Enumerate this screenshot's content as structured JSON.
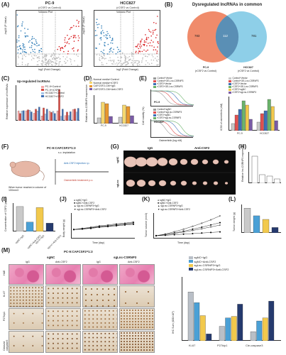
{
  "panels": {
    "A": "(A)",
    "B": "(B)",
    "C": "(C)",
    "D": "(D)",
    "E": "(E)",
    "F": "(F)",
    "G": "(G)",
    "H": "(H)",
    "I": "(I)",
    "J": "(J)",
    "K": "(K)",
    "L": "(L)",
    "M": "(M)"
  },
  "panelA": {
    "left_title": "PC-9",
    "left_sub": "(rCSF2  vs Control)",
    "right_title": "HCC827",
    "right_sub": "(rCSF2  vs Control)",
    "volcano_label": "Volcano Plot",
    "xlabel": "log2 (Fold Change)",
    "ylabel": "-log10 (P Value)",
    "legend": [
      "Down regulated",
      "Not significant",
      "Up regulated"
    ],
    "colors": {
      "up": "#d7191c",
      "down": "#2c7bb6",
      "ns": "#bdbdbd"
    }
  },
  "panelB": {
    "title": "Dysregulated lncRNAs in common",
    "left_value": "783",
    "center_value": "112",
    "right_value": "781",
    "left_label": "PC-9",
    "left_sub": "(rCSF2 vs Control)",
    "right_label": "HCC827",
    "right_sub": "(rCSF2 vs Control)",
    "colors": {
      "left": "#f08b6b",
      "right": "#8ecfe8",
      "overlap": "#5a8fb5"
    }
  },
  "panelC": {
    "title": "Up-regulated lncRNAs",
    "ylabel": "Relative expression of lncRNAs",
    "legend": [
      "PC-9+Control",
      "PC-9+rCSF2",
      "HCC827+Control",
      "HCC827+rCSF2"
    ],
    "colors": [
      "#f4a6a6",
      "#d9473e",
      "#a7c6ea",
      "#3d6fb5"
    ]
  },
  "panelD": {
    "ylabel": "Relative lnc-CSRNP3 expression",
    "categories": [
      "PC-9",
      "HCC827"
    ],
    "legend": [
      "Normal media+Control",
      "Normal media+rCSF2",
      "CAFCSF2-CM+IgG",
      "CAFCSF2-CM+Anti-CSF2"
    ],
    "colors": [
      "#c9c9c9",
      "#f5d76e",
      "#e8962e",
      "#7a5ba6"
    ]
  },
  "panelE": {
    "ylabel": "Cell viability (%)",
    "xlabel": "Osimertinib (log nM)",
    "ic50_label": "IC50 of osimertinib (nM)",
    "top_label": "PC-9",
    "bottom_label": "HCC827",
    "legend_top": [
      "Control+Vector",
      "Control+OE-Lnc-CSRNP3",
      "rCSF2+Vector",
      "rCSF2+OE-Lnc-CSRNP3"
    ],
    "legend_bottom": [
      "Control+sgNC",
      "Control+sgLnc-CSRNP3",
      "rCSF2+sgNC",
      "rCSF2+sgLnc-CSRNP3"
    ],
    "legend_ic": [
      "Control+Vector",
      "Control+OE-Lnc-CSRNP3",
      "rCSF2+Vector",
      "rCSF2+OE-Lnc-CSRNP3",
      "rCSF2+sgNC",
      "rCSF2+sgLnc-CSRNP3"
    ],
    "categories": [
      "PC-9",
      "HCC827"
    ]
  },
  "panelF": {
    "title": "PC-9:CAFCSF2=1:3",
    "step1": "s.c. implatation",
    "step2": "Anti-CSF2 injection i.p.",
    "step3": "Osimertinib treatment p.o.",
    "note": "When tumor reached a volume of 100mm3"
  },
  "panelG": {
    "col1": "IgG",
    "col2": "Anti-CSF2",
    "row1": "sgNC",
    "row2": "sgLnc"
  },
  "panelH": {
    "ylabel": "Relative lnc-CSRNP3 expression"
  },
  "panelI": {
    "ylabel": "Concentration of CSF2 (pg/ml)",
    "categories": [
      "sgNC+IgG",
      "sgNC+Anti-CSF2",
      "sgLnc+IgG",
      "sgLnc+Anti-CSF2"
    ]
  },
  "panelJ": {
    "ylabel": "Body weight (g)",
    "xlabel": "Time (day)",
    "legend": [
      "sgNC+IgG",
      "sgNC+Anti-CSF2",
      "sgLnc-CSRNP3+IgG",
      "sgLnc-CSRNP3+Anti-CSF2"
    ]
  },
  "panelK": {
    "ylabel": "Tumor volume (mm3)",
    "xlabel": "Time (day)",
    "legend": [
      "sgNC+IgG",
      "sgNC+Anti-CSF2",
      "sgLnc-CSRNP3+IgG",
      "sgLnc-CSRNP3+Anti-CSF2"
    ]
  },
  "panelL": {
    "ylabel": "Tumor weight (g)"
  },
  "panelM": {
    "title": "PC-9:CAFCSF2=1:3",
    "group1": "sgNC",
    "group2": "sgLnc-CSRNP3",
    "cols": [
      "IgG",
      "Anti-CSF2",
      "IgG",
      "Anti-CSF2"
    ],
    "rows": [
      "H&E",
      "Ki-67",
      "P27kip1",
      "Cleaved caspase3"
    ],
    "legend": [
      "sgNC+IgG",
      "sgNC+Anti-CSF2",
      "sgLnc-CSRNP3+IgG",
      "sgLnc-CSRNP3+Anti-CSF2"
    ],
    "colors": [
      "#b9bfc7",
      "#4aa0d6",
      "#f2c94c",
      "#253a6e"
    ],
    "ylabel": "IHC Sum (IOD×10³)",
    "categories": [
      "Ki-67",
      "P27kip1",
      "Cle-caspase3"
    ]
  },
  "chart_data": [
    {
      "type": "bar",
      "id": "panelM-ihc",
      "categories": [
        "Ki-67",
        "P27kip1",
        "Cle-caspase3"
      ],
      "series": [
        {
          "name": "sgNC+IgG",
          "values": [
            640,
            190,
            120
          ]
        },
        {
          "name": "sgNC+Anti-CSF2",
          "values": [
            500,
            300,
            260
          ]
        },
        {
          "name": "sgLnc-CSRNP3+IgG",
          "values": [
            330,
            320,
            300
          ]
        },
        {
          "name": "sgLnc-CSRNP3+Anti-CSF2",
          "values": [
            90,
            480,
            520
          ]
        }
      ],
      "ylabel": "IHC Sum (IOD×10³)",
      "ylim": [
        0,
        800
      ]
    },
    {
      "type": "line",
      "id": "panelK-volume",
      "x": [
        0,
        4,
        8,
        12,
        16,
        20,
        24,
        28
      ],
      "series": [
        {
          "name": "sgNC+IgG",
          "values": [
            100,
            220,
            380,
            560,
            760,
            980,
            1220,
            1500
          ]
        },
        {
          "name": "sgNC+Anti-CSF2",
          "values": [
            100,
            180,
            290,
            420,
            560,
            700,
            860,
            1020
          ]
        },
        {
          "name": "sgLnc-CSRNP3+IgG",
          "values": [
            100,
            170,
            260,
            360,
            470,
            590,
            720,
            850
          ]
        },
        {
          "name": "sgLnc-CSRNP3+Anti-CSF2",
          "values": [
            100,
            130,
            170,
            210,
            250,
            290,
            330,
            370
          ]
        }
      ],
      "xlabel": "Time (day)",
      "ylabel": "Tumor volume (mm3)"
    },
    {
      "type": "line",
      "id": "panelJ-weight",
      "x": [
        0,
        4,
        8,
        12,
        16,
        20,
        24,
        28
      ],
      "series": [
        {
          "name": "sgNC+IgG",
          "values": [
            20,
            20.3,
            20.6,
            21,
            21.2,
            21.5,
            21.7,
            22
          ]
        },
        {
          "name": "sgNC+Anti-CSF2",
          "values": [
            20,
            20.2,
            20.5,
            20.8,
            21,
            21.3,
            21.5,
            21.8
          ]
        },
        {
          "name": "sgLnc-CSRNP3+IgG",
          "values": [
            20,
            20.1,
            20.4,
            20.7,
            20.9,
            21.1,
            21.4,
            21.6
          ]
        },
        {
          "name": "sgLnc-CSRNP3+Anti-CSF2",
          "values": [
            20,
            20.2,
            20.3,
            20.6,
            20.8,
            21,
            21.2,
            21.4
          ]
        }
      ],
      "xlabel": "Time (day)",
      "ylabel": "Body weight (g)"
    },
    {
      "type": "bar",
      "id": "panelI-csf2",
      "categories": [
        "sgNC+IgG",
        "sgNC+Anti-CSF2",
        "sgLnc+IgG",
        "sgLnc+Anti-CSF2"
      ],
      "values": [
        240,
        90,
        230,
        80
      ],
      "ylabel": "Concentration of CSF2 (pg/ml)"
    },
    {
      "type": "bar",
      "id": "panelL-weight",
      "categories": [
        "sgNC+IgG",
        "sgNC+Anti-CSF2",
        "sgLnc+IgG",
        "sgLnc+Anti-CSF2"
      ],
      "values": [
        0.55,
        0.38,
        0.3,
        0.12
      ],
      "ylabel": "Tumor weight (g)"
    }
  ]
}
